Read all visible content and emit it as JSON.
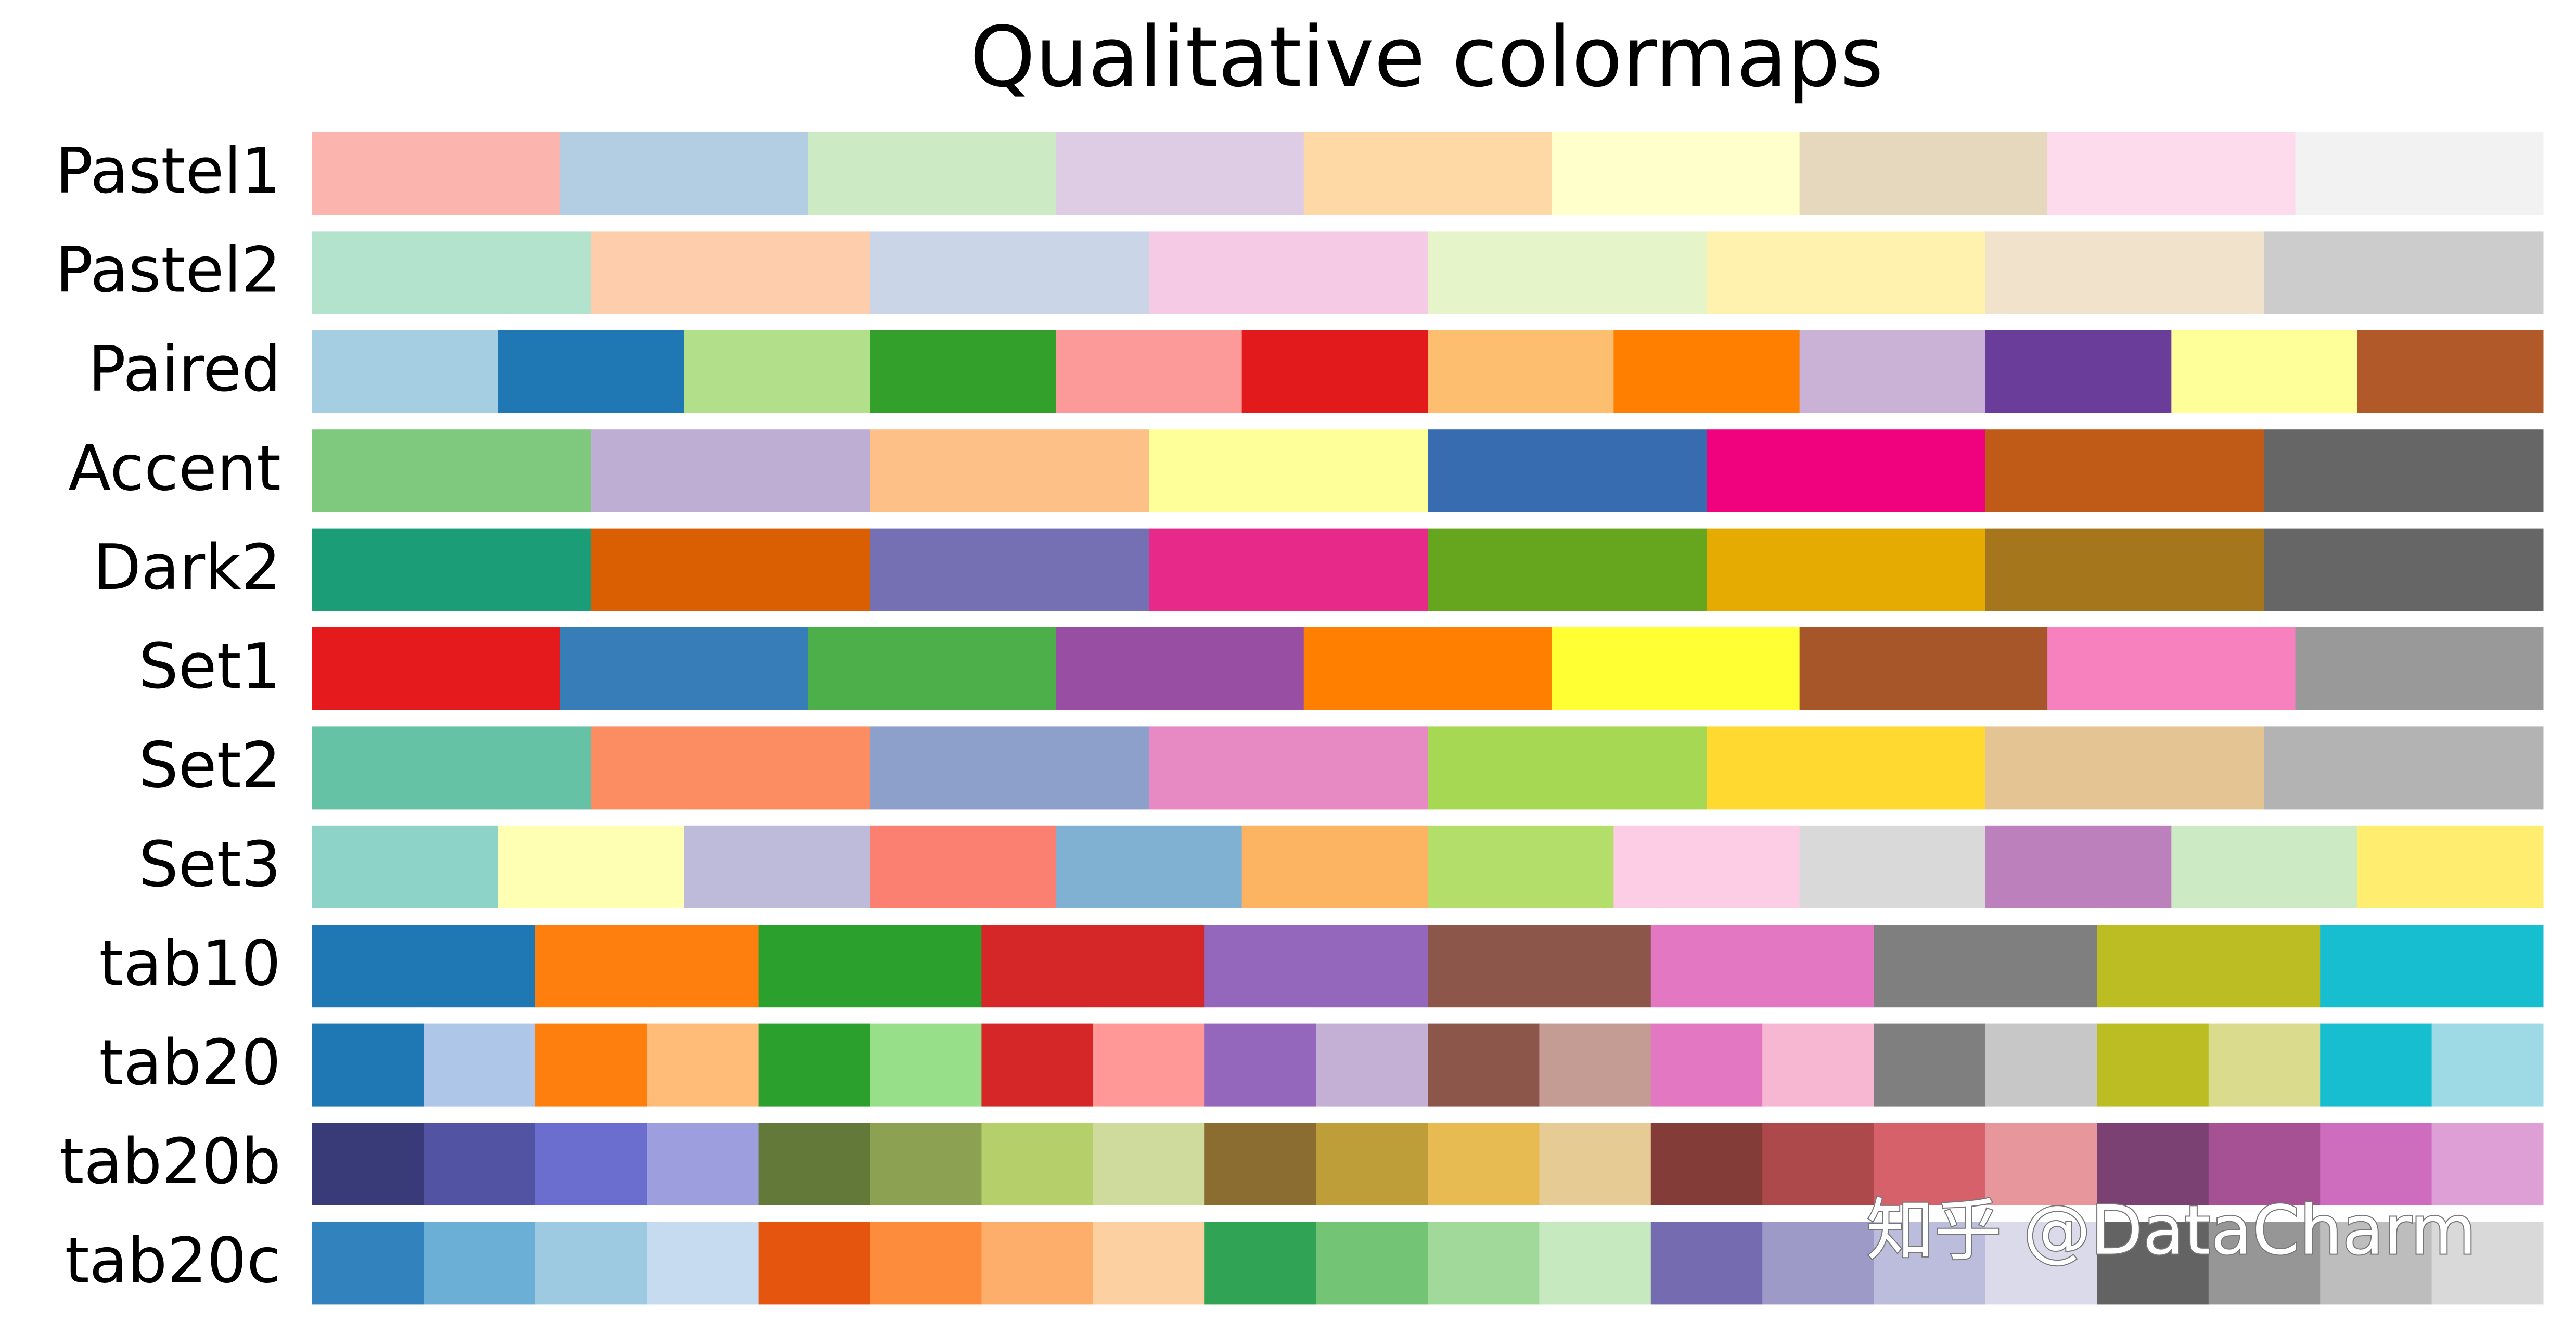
{
  "title": "Qualitative colormaps",
  "watermark": "知乎 @DataCharm",
  "colormaps": [
    {
      "name": "Pastel1",
      "colors": [
        "#fbb4ae",
        "#b3cde3",
        "#ccebc5",
        "#decbe4",
        "#fed9a6",
        "#ffffcc",
        "#e5d8bd",
        "#fddaec",
        "#f2f2f2"
      ]
    },
    {
      "name": "Pastel2",
      "colors": [
        "#b3e2cd",
        "#fdcdac",
        "#cbd5e8",
        "#f4cae4",
        "#e6f5c9",
        "#fff2ae",
        "#f1e2cc",
        "#cccccc"
      ]
    },
    {
      "name": "Paired",
      "colors": [
        "#a6cee3",
        "#1f78b4",
        "#b2df8a",
        "#33a02c",
        "#fb9a99",
        "#e31a1c",
        "#fdbf6f",
        "#ff7f00",
        "#cab2d6",
        "#6a3d9a",
        "#ffff99",
        "#b15928"
      ]
    },
    {
      "name": "Accent",
      "colors": [
        "#7fc97f",
        "#beaed4",
        "#fdc086",
        "#ffff99",
        "#386cb0",
        "#f0027f",
        "#bf5b17",
        "#666666"
      ]
    },
    {
      "name": "Dark2",
      "colors": [
        "#1b9e77",
        "#d95f02",
        "#7570b3",
        "#e7298a",
        "#66a61e",
        "#e6ab02",
        "#a6761d",
        "#666666"
      ]
    },
    {
      "name": "Set1",
      "colors": [
        "#e41a1c",
        "#377eb8",
        "#4daf4a",
        "#984ea3",
        "#ff7f00",
        "#ffff33",
        "#a65628",
        "#f781bf",
        "#999999"
      ]
    },
    {
      "name": "Set2",
      "colors": [
        "#66c2a5",
        "#fc8d62",
        "#8da0cb",
        "#e78ac3",
        "#a6d854",
        "#ffd92f",
        "#e5c494",
        "#b3b3b3"
      ]
    },
    {
      "name": "Set3",
      "colors": [
        "#8dd3c7",
        "#ffffb3",
        "#bebada",
        "#fb8072",
        "#80b1d3",
        "#fdb462",
        "#b3de69",
        "#fccde5",
        "#d9d9d9",
        "#bc80bd",
        "#ccebc5",
        "#ffed6f"
      ]
    },
    {
      "name": "tab10",
      "colors": [
        "#1f77b4",
        "#ff7f0e",
        "#2ca02c",
        "#d62728",
        "#9467bd",
        "#8c564b",
        "#e377c2",
        "#7f7f7f",
        "#bcbd22",
        "#17becf"
      ]
    },
    {
      "name": "tab20",
      "colors": [
        "#1f77b4",
        "#aec7e8",
        "#ff7f0e",
        "#ffbb78",
        "#2ca02c",
        "#98df8a",
        "#d62728",
        "#ff9896",
        "#9467bd",
        "#c5b0d5",
        "#8c564b",
        "#c49c94",
        "#e377c2",
        "#f7b6d2",
        "#7f7f7f",
        "#c7c7c7",
        "#bcbd22",
        "#dbdb8d",
        "#17becf",
        "#9edae5"
      ]
    },
    {
      "name": "tab20b",
      "colors": [
        "#393b79",
        "#5254a3",
        "#6b6ecf",
        "#9c9ede",
        "#637939",
        "#8ca252",
        "#b5cf6b",
        "#cedb9c",
        "#8c6d31",
        "#bd9e39",
        "#e7ba52",
        "#e7cb94",
        "#843c39",
        "#ad494a",
        "#d6616b",
        "#e7969c",
        "#7b4173",
        "#a55194",
        "#ce6dbd",
        "#de9ed6"
      ]
    },
    {
      "name": "tab20c",
      "colors": [
        "#3182bd",
        "#6baed6",
        "#9ecae1",
        "#c6dbef",
        "#e6550d",
        "#fd8d3c",
        "#fdae6b",
        "#fdd0a2",
        "#31a354",
        "#74c476",
        "#a1d99b",
        "#c7e9c0",
        "#756bb1",
        "#9e9ac8",
        "#bcbddc",
        "#dadaeb",
        "#636363",
        "#969696",
        "#bdbdbd",
        "#d9d9d9"
      ]
    }
  ]
}
